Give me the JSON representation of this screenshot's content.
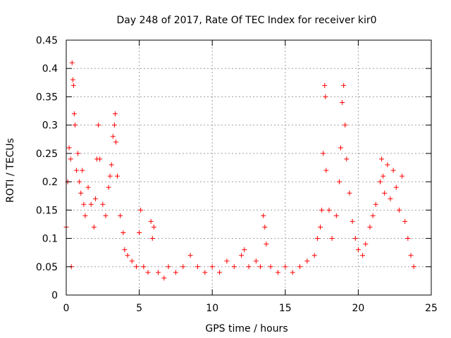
{
  "chart_data": {
    "type": "scatter",
    "title": "Day 248 of 2017, Rate Of TEC Index for receiver kir0",
    "xlabel": "GPS time / hours",
    "ylabel": "ROTI / TECUs",
    "xlim": [
      0,
      25
    ],
    "ylim": [
      0,
      0.45
    ],
    "x_ticks": [
      "0",
      "5",
      "10",
      "15",
      "20",
      "25"
    ],
    "y_ticks": [
      "0",
      "0.05",
      "0.1",
      "0.15",
      "0.2",
      "0.25",
      "0.3",
      "0.35",
      "0.4",
      "0.45"
    ],
    "grid": true,
    "marker": "+",
    "color": "#ff0000",
    "series": [
      {
        "points": [
          [
            0.0,
            0.12
          ],
          [
            0.1,
            0.2
          ],
          [
            0.2,
            0.26
          ],
          [
            0.3,
            0.24
          ],
          [
            0.35,
            0.05
          ],
          [
            0.4,
            0.41
          ],
          [
            0.45,
            0.38
          ],
          [
            0.5,
            0.37
          ],
          [
            0.55,
            0.32
          ],
          [
            0.6,
            0.3
          ],
          [
            0.7,
            0.22
          ],
          [
            0.8,
            0.25
          ],
          [
            0.9,
            0.2
          ],
          [
            1.0,
            0.18
          ],
          [
            1.1,
            0.22
          ],
          [
            1.2,
            0.16
          ],
          [
            1.3,
            0.14
          ],
          [
            1.5,
            0.19
          ],
          [
            1.7,
            0.16
          ],
          [
            1.9,
            0.12
          ],
          [
            2.0,
            0.17
          ],
          [
            2.1,
            0.24
          ],
          [
            2.2,
            0.3
          ],
          [
            2.3,
            0.24
          ],
          [
            2.5,
            0.16
          ],
          [
            2.7,
            0.14
          ],
          [
            2.9,
            0.19
          ],
          [
            3.0,
            0.21
          ],
          [
            3.1,
            0.23
          ],
          [
            3.2,
            0.28
          ],
          [
            3.3,
            0.3
          ],
          [
            3.35,
            0.32
          ],
          [
            3.4,
            0.27
          ],
          [
            3.5,
            0.21
          ],
          [
            3.7,
            0.14
          ],
          [
            3.9,
            0.11
          ],
          [
            4.0,
            0.08
          ],
          [
            4.2,
            0.07
          ],
          [
            4.5,
            0.06
          ],
          [
            4.8,
            0.05
          ],
          [
            5.0,
            0.11
          ],
          [
            5.1,
            0.15
          ],
          [
            5.3,
            0.05
          ],
          [
            5.6,
            0.04
          ],
          [
            5.8,
            0.13
          ],
          [
            5.9,
            0.1
          ],
          [
            6.0,
            0.12
          ],
          [
            6.3,
            0.04
          ],
          [
            6.7,
            0.03
          ],
          [
            7.0,
            0.05
          ],
          [
            7.5,
            0.04
          ],
          [
            8.0,
            0.05
          ],
          [
            8.5,
            0.07
          ],
          [
            9.0,
            0.05
          ],
          [
            9.5,
            0.04
          ],
          [
            10.0,
            0.05
          ],
          [
            10.5,
            0.04
          ],
          [
            11.0,
            0.06
          ],
          [
            11.5,
            0.05
          ],
          [
            12.0,
            0.07
          ],
          [
            12.2,
            0.08
          ],
          [
            12.5,
            0.05
          ],
          [
            13.0,
            0.06
          ],
          [
            13.3,
            0.05
          ],
          [
            13.5,
            0.14
          ],
          [
            13.6,
            0.12
          ],
          [
            13.7,
            0.09
          ],
          [
            14.0,
            0.05
          ],
          [
            14.5,
            0.04
          ],
          [
            15.0,
            0.05
          ],
          [
            15.5,
            0.04
          ],
          [
            16.0,
            0.05
          ],
          [
            16.5,
            0.06
          ],
          [
            17.0,
            0.07
          ],
          [
            17.2,
            0.1
          ],
          [
            17.4,
            0.12
          ],
          [
            17.5,
            0.15
          ],
          [
            17.6,
            0.25
          ],
          [
            17.7,
            0.37
          ],
          [
            17.75,
            0.35
          ],
          [
            17.8,
            0.22
          ],
          [
            18.0,
            0.15
          ],
          [
            18.2,
            0.1
          ],
          [
            18.5,
            0.14
          ],
          [
            18.7,
            0.2
          ],
          [
            18.8,
            0.26
          ],
          [
            18.9,
            0.34
          ],
          [
            19.0,
            0.37
          ],
          [
            19.1,
            0.3
          ],
          [
            19.2,
            0.24
          ],
          [
            19.4,
            0.18
          ],
          [
            19.6,
            0.13
          ],
          [
            19.8,
            0.1
          ],
          [
            20.0,
            0.08
          ],
          [
            20.3,
            0.07
          ],
          [
            20.5,
            0.09
          ],
          [
            20.8,
            0.12
          ],
          [
            21.0,
            0.14
          ],
          [
            21.2,
            0.16
          ],
          [
            21.5,
            0.2
          ],
          [
            21.6,
            0.24
          ],
          [
            21.7,
            0.21
          ],
          [
            21.8,
            0.18
          ],
          [
            22.0,
            0.23
          ],
          [
            22.2,
            0.17
          ],
          [
            22.4,
            0.22
          ],
          [
            22.6,
            0.19
          ],
          [
            22.8,
            0.15
          ],
          [
            23.0,
            0.21
          ],
          [
            23.2,
            0.13
          ],
          [
            23.4,
            0.1
          ],
          [
            23.6,
            0.07
          ],
          [
            23.8,
            0.05
          ]
        ]
      }
    ]
  }
}
